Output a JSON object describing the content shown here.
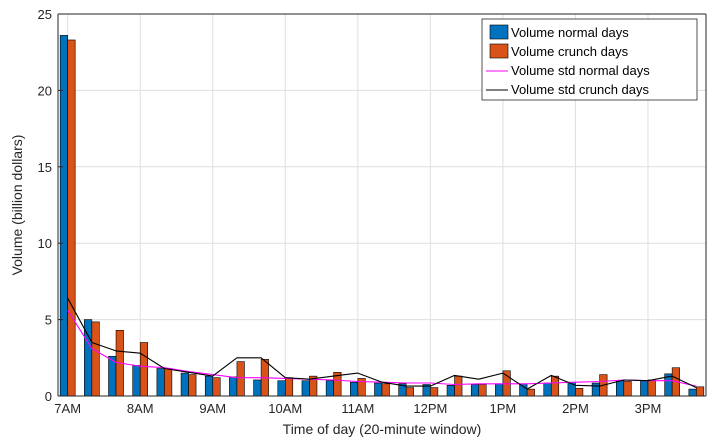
{
  "chart_data": {
    "type": "bar",
    "xlabel": "Time of day (20-minute window)",
    "ylabel": "Volume (billion dollars)",
    "ylim": [
      0,
      25
    ],
    "yticks": [
      0,
      5,
      10,
      15,
      20,
      25
    ],
    "xtick_labels": [
      "7AM",
      "8AM",
      "9AM",
      "10AM",
      "11AM",
      "12PM",
      "1PM",
      "2PM",
      "3PM"
    ],
    "xtick_positions": [
      1,
      4,
      7,
      10,
      13,
      16,
      19,
      22,
      25
    ],
    "x": [
      1,
      2,
      3,
      4,
      5,
      6,
      7,
      8,
      9,
      10,
      11,
      12,
      13,
      14,
      15,
      16,
      17,
      18,
      19,
      20,
      21,
      22,
      23,
      24,
      25,
      26,
      27
    ],
    "xlim": [
      0.6,
      27.4
    ],
    "grid": true,
    "legend_position": "top-right",
    "series": [
      {
        "name": "Volume normal days",
        "kind": "bar",
        "color": "#0072BD",
        "values": [
          23.6,
          5.0,
          2.6,
          2.0,
          1.8,
          1.5,
          1.3,
          1.25,
          1.05,
          1.0,
          1.0,
          1.0,
          0.9,
          0.85,
          0.8,
          0.75,
          0.7,
          0.75,
          0.8,
          0.8,
          0.85,
          0.9,
          0.85,
          1.0,
          1.0,
          1.45,
          0.45
        ]
      },
      {
        "name": "Volume crunch days",
        "kind": "bar",
        "color": "#D95319",
        "values": [
          23.3,
          4.85,
          4.3,
          3.5,
          1.8,
          1.4,
          1.2,
          2.25,
          2.4,
          1.2,
          1.3,
          1.55,
          1.15,
          0.8,
          0.55,
          0.55,
          1.3,
          0.75,
          1.65,
          0.45,
          1.3,
          0.5,
          1.4,
          0.95,
          1.05,
          1.85,
          0.6
        ]
      },
      {
        "name": "Volume std normal days",
        "kind": "line",
        "color": "#FF00FF",
        "values": [
          5.6,
          3.1,
          2.2,
          1.95,
          1.85,
          1.6,
          1.4,
          1.2,
          1.2,
          1.15,
          1.1,
          1.05,
          0.95,
          0.9,
          0.85,
          0.85,
          0.75,
          0.8,
          0.8,
          0.8,
          0.85,
          0.9,
          0.95,
          1.05,
          1.0,
          1.0,
          0.65
        ]
      },
      {
        "name": "Volume std crunch days",
        "kind": "line",
        "color": "#000000",
        "values": [
          6.4,
          3.5,
          2.95,
          2.8,
          1.8,
          1.55,
          1.3,
          2.5,
          2.5,
          1.2,
          1.1,
          1.3,
          1.5,
          0.9,
          0.65,
          0.65,
          1.35,
          1.1,
          1.5,
          0.45,
          1.35,
          0.7,
          0.65,
          1.05,
          1.0,
          1.3,
          0.55
        ]
      }
    ]
  }
}
